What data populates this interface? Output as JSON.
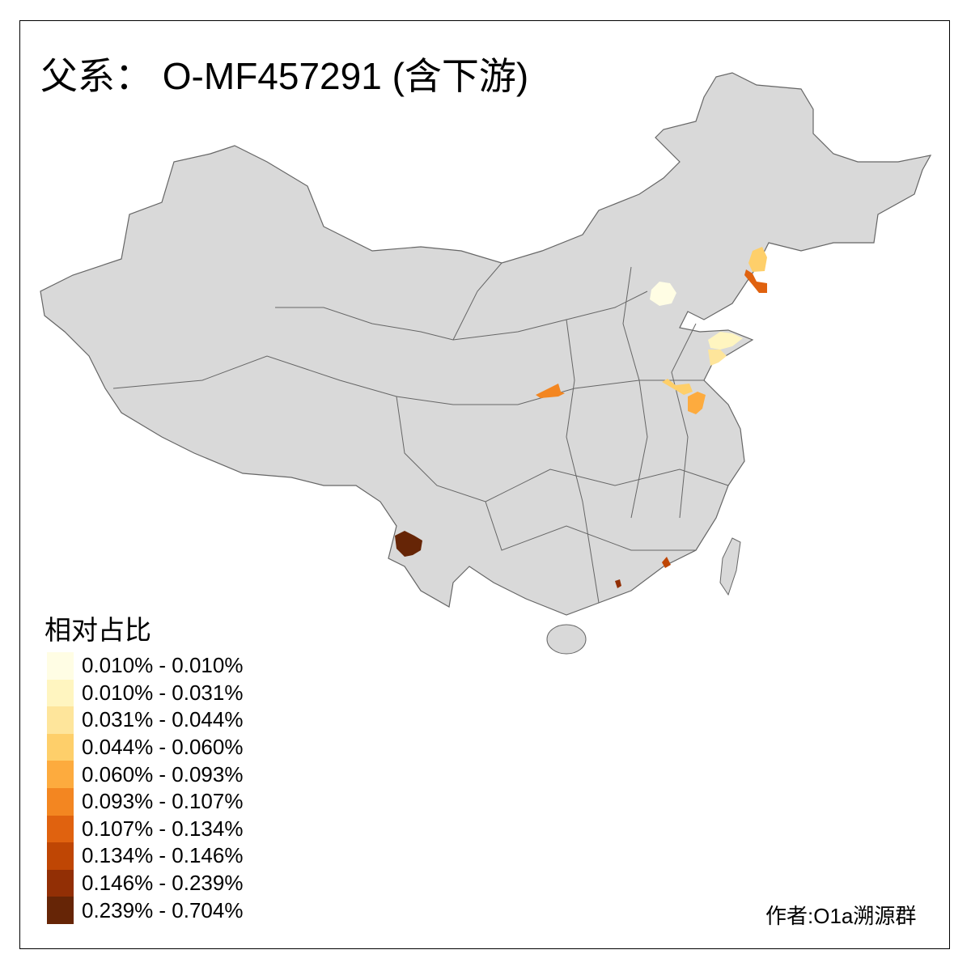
{
  "title": "父系： O-MF457291 (含下游)",
  "legend": {
    "title": "相对占比",
    "items": [
      {
        "label": "0.010% - 0.010%",
        "color": "#FFFDE4"
      },
      {
        "label": "0.010% - 0.031%",
        "color": "#FFF5C0"
      },
      {
        "label": "0.031% - 0.044%",
        "color": "#FEE59B"
      },
      {
        "label": "0.044% - 0.060%",
        "color": "#FECF6A"
      },
      {
        "label": "0.060% - 0.093%",
        "color": "#FDAB3E"
      },
      {
        "label": "0.093% - 0.107%",
        "color": "#F38621"
      },
      {
        "label": "0.107% - 0.134%",
        "color": "#E0620F"
      },
      {
        "label": "0.134% - 0.146%",
        "color": "#BF4604"
      },
      {
        "label": "0.146% - 0.239%",
        "color": "#922F05"
      },
      {
        "label": "0.239% - 0.704%",
        "color": "#662506"
      }
    ]
  },
  "map": {
    "base_color": "#D9D9D9",
    "border_color": "#666666",
    "highlighted_regions": [
      {
        "name": "beijing",
        "class": 0
      },
      {
        "name": "liaoning-north",
        "class": 3
      },
      {
        "name": "liaoning-dalian",
        "class": 6
      },
      {
        "name": "shandong-east",
        "class": 1
      },
      {
        "name": "shandong-southeast",
        "class": 2
      },
      {
        "name": "jiangsu-north",
        "class": 3
      },
      {
        "name": "jiangsu-central",
        "class": 4
      },
      {
        "name": "shaanxi-central",
        "class": 5
      },
      {
        "name": "yunnan-southwest",
        "class": 9
      },
      {
        "name": "guangdong-east",
        "class": 7
      },
      {
        "name": "guangdong-central",
        "class": 8
      }
    ]
  },
  "author": "作者:O1a溯源群"
}
